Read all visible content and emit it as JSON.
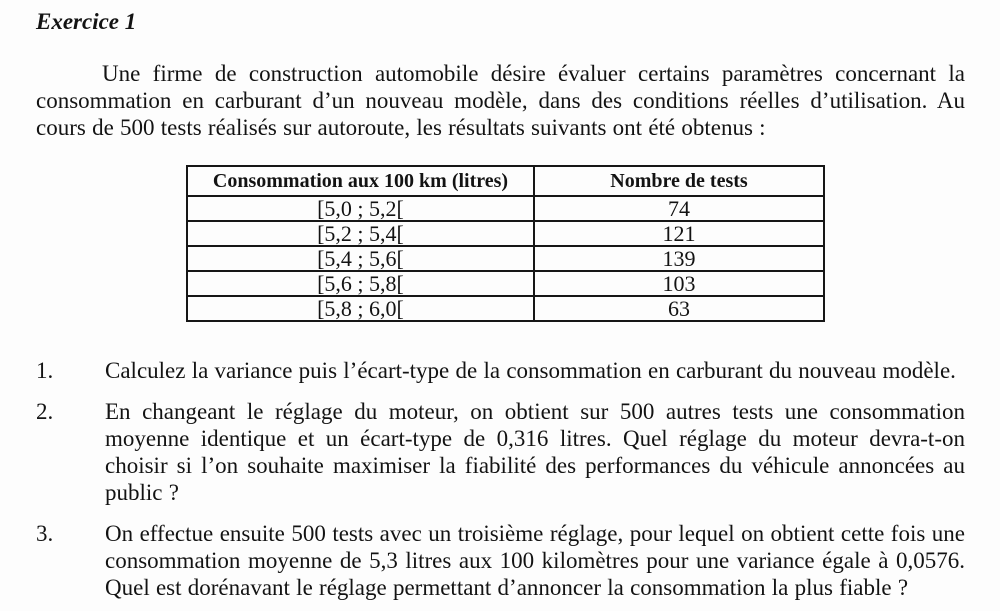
{
  "doc": {
    "title": "Exercice 1",
    "intro": "Une firme de construction automobile désire évaluer certains paramètres concernant la consommation en carburant d’un nouveau modèle, dans des conditions réelles d’utilisation. Au cours de 500 tests réalisés sur autoroute, les résultats suivants ont été obtenus :",
    "table": {
      "headers": [
        "Consommation aux 100 km (litres)",
        "Nombre de tests"
      ],
      "rows": [
        [
          "[5,0 ; 5,2[",
          "74"
        ],
        [
          "[5,2 ; 5,4[",
          "121"
        ],
        [
          "[5,4 ; 5,6[",
          "139"
        ],
        [
          "[5,6 ; 5,8[",
          "103"
        ],
        [
          "[5,8 ; 6,0[",
          "63"
        ]
      ]
    },
    "questions": [
      {
        "number": "1.",
        "text": "Calculez la variance puis l’écart-type de la consommation en carburant du nouveau modèle."
      },
      {
        "number": "2.",
        "text": "En changeant le réglage du moteur, on obtient sur 500 autres tests une consommation moyenne identique et un écart-type de 0,316 litres. Quel réglage du moteur devra-t-on choisir si l’on souhaite maximiser la fiabilité des performances du véhicule annoncées au public ?"
      },
      {
        "number": "3.",
        "text": "On effectue ensuite 500 tests avec un troisième réglage, pour lequel on obtient cette fois une consommation moyenne de 5,3 litres aux 100 kilomètres pour une variance égale à 0,0576. Quel est dorénavant le réglage permettant d’annoncer la consommation la plus fiable ?"
      }
    ],
    "colors": {
      "text": "#131313",
      "background": "#fdfdfd",
      "table_border": "#161616"
    }
  }
}
